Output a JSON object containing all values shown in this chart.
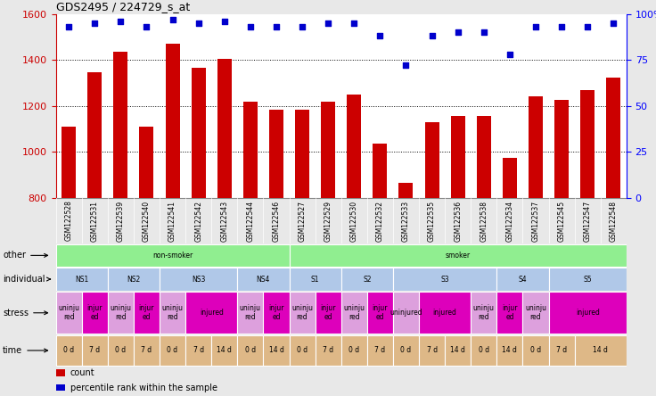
{
  "title": "GDS2495 / 224729_s_at",
  "samples": [
    "GSM122528",
    "GSM122531",
    "GSM122539",
    "GSM122540",
    "GSM122541",
    "GSM122542",
    "GSM122543",
    "GSM122544",
    "GSM122546",
    "GSM122527",
    "GSM122529",
    "GSM122530",
    "GSM122532",
    "GSM122533",
    "GSM122535",
    "GSM122536",
    "GSM122538",
    "GSM122534",
    "GSM122537",
    "GSM122545",
    "GSM122547",
    "GSM122548"
  ],
  "counts": [
    1110,
    1345,
    1435,
    1110,
    1470,
    1365,
    1405,
    1220,
    1185,
    1185,
    1220,
    1250,
    1035,
    865,
    1130,
    1155,
    1155,
    975,
    1240,
    1225,
    1270,
    1325
  ],
  "percentiles": [
    93,
    95,
    96,
    93,
    97,
    95,
    96,
    93,
    93,
    93,
    95,
    95,
    88,
    72,
    88,
    90,
    90,
    78,
    93,
    93,
    93,
    95
  ],
  "ylim_left": [
    800,
    1600
  ],
  "ylim_right": [
    0,
    100
  ],
  "yticks_left": [
    800,
    1000,
    1200,
    1400,
    1600
  ],
  "yticks_right": [
    0,
    25,
    50,
    75,
    100
  ],
  "bar_color": "#cc0000",
  "dot_color": "#0000cc",
  "bg_color": "#e8e8e8",
  "plot_bg": "#ffffff",
  "xticklabel_bg": "#c8c8c8",
  "other_row": {
    "label": "other",
    "blocks": [
      {
        "text": "non-smoker",
        "start": 0,
        "end": 9,
        "color": "#90ee90"
      },
      {
        "text": "smoker",
        "start": 9,
        "end": 22,
        "color": "#90ee90"
      }
    ]
  },
  "individual_row": {
    "label": "individual",
    "blocks": [
      {
        "text": "NS1",
        "start": 0,
        "end": 2,
        "color": "#b0c8e8"
      },
      {
        "text": "NS2",
        "start": 2,
        "end": 4,
        "color": "#b0c8e8"
      },
      {
        "text": "NS3",
        "start": 4,
        "end": 7,
        "color": "#b0c8e8"
      },
      {
        "text": "NS4",
        "start": 7,
        "end": 9,
        "color": "#b0c8e8"
      },
      {
        "text": "S1",
        "start": 9,
        "end": 11,
        "color": "#b0c8e8"
      },
      {
        "text": "S2",
        "start": 11,
        "end": 13,
        "color": "#b0c8e8"
      },
      {
        "text": "S3",
        "start": 13,
        "end": 17,
        "color": "#b0c8e8"
      },
      {
        "text": "S4",
        "start": 17,
        "end": 19,
        "color": "#b0c8e8"
      },
      {
        "text": "S5",
        "start": 19,
        "end": 22,
        "color": "#b0c8e8"
      }
    ]
  },
  "stress_row": {
    "label": "stress",
    "blocks": [
      {
        "text": "uninju\nred",
        "start": 0,
        "end": 1,
        "color": "#dda0dd"
      },
      {
        "text": "injur\ned",
        "start": 1,
        "end": 2,
        "color": "#dd00bb"
      },
      {
        "text": "uninju\nred",
        "start": 2,
        "end": 3,
        "color": "#dda0dd"
      },
      {
        "text": "injur\ned",
        "start": 3,
        "end": 4,
        "color": "#dd00bb"
      },
      {
        "text": "uninju\nred",
        "start": 4,
        "end": 5,
        "color": "#dda0dd"
      },
      {
        "text": "injured",
        "start": 5,
        "end": 7,
        "color": "#dd00bb"
      },
      {
        "text": "uninju\nred",
        "start": 7,
        "end": 8,
        "color": "#dda0dd"
      },
      {
        "text": "injur\ned",
        "start": 8,
        "end": 9,
        "color": "#dd00bb"
      },
      {
        "text": "uninju\nred",
        "start": 9,
        "end": 10,
        "color": "#dda0dd"
      },
      {
        "text": "injur\ned",
        "start": 10,
        "end": 11,
        "color": "#dd00bb"
      },
      {
        "text": "uninju\nred",
        "start": 11,
        "end": 12,
        "color": "#dda0dd"
      },
      {
        "text": "injur\ned",
        "start": 12,
        "end": 13,
        "color": "#dd00bb"
      },
      {
        "text": "uninjured",
        "start": 13,
        "end": 14,
        "color": "#dda0dd"
      },
      {
        "text": "injured",
        "start": 14,
        "end": 16,
        "color": "#dd00bb"
      },
      {
        "text": "uninju\nred",
        "start": 16,
        "end": 17,
        "color": "#dda0dd"
      },
      {
        "text": "injur\ned",
        "start": 17,
        "end": 18,
        "color": "#dd00bb"
      },
      {
        "text": "uninju\nred",
        "start": 18,
        "end": 19,
        "color": "#dda0dd"
      },
      {
        "text": "injured",
        "start": 19,
        "end": 22,
        "color": "#dd00bb"
      }
    ]
  },
  "time_row": {
    "label": "time",
    "blocks": [
      {
        "text": "0 d",
        "start": 0,
        "end": 1,
        "color": "#deb887"
      },
      {
        "text": "7 d",
        "start": 1,
        "end": 2,
        "color": "#deb887"
      },
      {
        "text": "0 d",
        "start": 2,
        "end": 3,
        "color": "#deb887"
      },
      {
        "text": "7 d",
        "start": 3,
        "end": 4,
        "color": "#deb887"
      },
      {
        "text": "0 d",
        "start": 4,
        "end": 5,
        "color": "#deb887"
      },
      {
        "text": "7 d",
        "start": 5,
        "end": 6,
        "color": "#deb887"
      },
      {
        "text": "14 d",
        "start": 6,
        "end": 7,
        "color": "#deb887"
      },
      {
        "text": "0 d",
        "start": 7,
        "end": 8,
        "color": "#deb887"
      },
      {
        "text": "14 d",
        "start": 8,
        "end": 9,
        "color": "#deb887"
      },
      {
        "text": "0 d",
        "start": 9,
        "end": 10,
        "color": "#deb887"
      },
      {
        "text": "7 d",
        "start": 10,
        "end": 11,
        "color": "#deb887"
      },
      {
        "text": "0 d",
        "start": 11,
        "end": 12,
        "color": "#deb887"
      },
      {
        "text": "7 d",
        "start": 12,
        "end": 13,
        "color": "#deb887"
      },
      {
        "text": "0 d",
        "start": 13,
        "end": 14,
        "color": "#deb887"
      },
      {
        "text": "7 d",
        "start": 14,
        "end": 15,
        "color": "#deb887"
      },
      {
        "text": "14 d",
        "start": 15,
        "end": 16,
        "color": "#deb887"
      },
      {
        "text": "0 d",
        "start": 16,
        "end": 17,
        "color": "#deb887"
      },
      {
        "text": "14 d",
        "start": 17,
        "end": 18,
        "color": "#deb887"
      },
      {
        "text": "0 d",
        "start": 18,
        "end": 19,
        "color": "#deb887"
      },
      {
        "text": "7 d",
        "start": 19,
        "end": 20,
        "color": "#deb887"
      },
      {
        "text": "14 d",
        "start": 20,
        "end": 22,
        "color": "#deb887"
      }
    ]
  },
  "legend_items": [
    {
      "label": "count",
      "color": "#cc0000",
      "marker": "s"
    },
    {
      "label": "percentile rank within the sample",
      "color": "#0000cc",
      "marker": "s"
    }
  ]
}
